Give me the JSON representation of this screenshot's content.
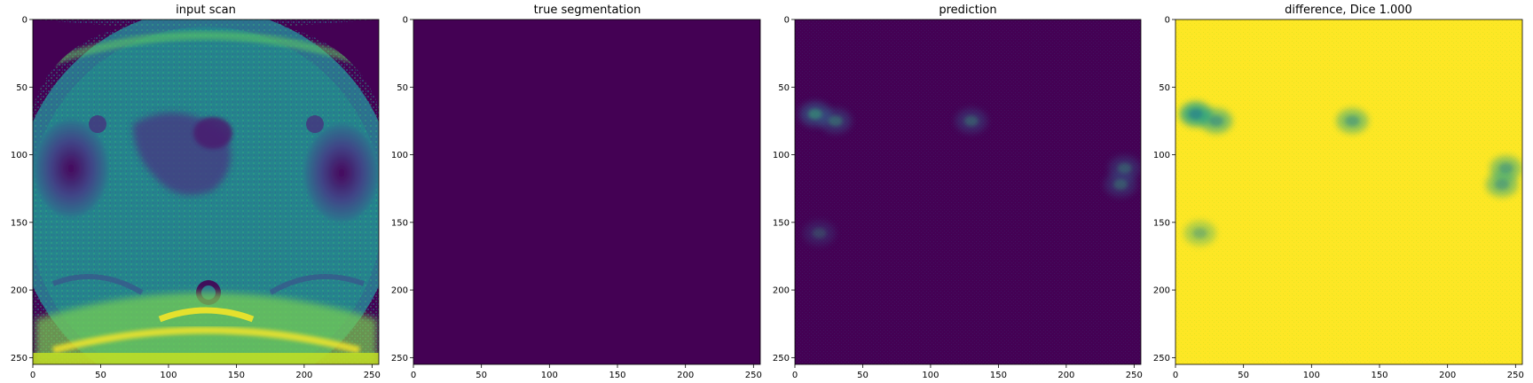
{
  "figure": {
    "panels": [
      {
        "key": "input",
        "title": "input scan"
      },
      {
        "key": "truth",
        "title": "true segmentation"
      },
      {
        "key": "pred",
        "title": "prediction"
      },
      {
        "key": "diff",
        "title": "difference, Dice 1.000"
      }
    ]
  },
  "chart_data": [
    {
      "type": "heatmap",
      "title": "input scan",
      "content": "grayscale MRI axial pelvic slice rendered with viridis colormap",
      "colormap": "viridis",
      "xlim": [
        0,
        255
      ],
      "ylim": [
        255,
        0
      ],
      "xticks": [
        0,
        50,
        100,
        150,
        200,
        250
      ],
      "yticks": [
        0,
        50,
        100,
        150,
        200,
        250
      ]
    },
    {
      "type": "heatmap",
      "title": "true segmentation",
      "content": "uniform zero mask",
      "colormap": "viridis",
      "value": 0,
      "xlim": [
        0,
        255
      ],
      "ylim": [
        255,
        0
      ],
      "xticks": [
        0,
        50,
        100,
        150,
        200,
        250
      ],
      "yticks": [
        0,
        50,
        100,
        150,
        200,
        250
      ]
    },
    {
      "type": "heatmap",
      "title": "prediction",
      "content": "mostly near-zero prediction with faint activations",
      "colormap": "viridis",
      "hotspots": [
        {
          "x": 15,
          "y": 70,
          "v": 0.55
        },
        {
          "x": 30,
          "y": 75,
          "v": 0.4
        },
        {
          "x": 130,
          "y": 75,
          "v": 0.35
        },
        {
          "x": 243,
          "y": 110,
          "v": 0.35
        },
        {
          "x": 240,
          "y": 122,
          "v": 0.35
        },
        {
          "x": 18,
          "y": 158,
          "v": 0.25
        }
      ],
      "xlim": [
        0,
        255
      ],
      "ylim": [
        255,
        0
      ],
      "xticks": [
        0,
        50,
        100,
        150,
        200,
        250
      ],
      "yticks": [
        0,
        50,
        100,
        150,
        200,
        250
      ]
    },
    {
      "type": "heatmap",
      "title": "difference, Dice 1.000",
      "content": "near-uniform high values with dips where prediction is active",
      "colormap": "viridis",
      "xlim": [
        0,
        255
      ],
      "ylim": [
        255,
        0
      ],
      "xticks": [
        0,
        50,
        100,
        150,
        200,
        250
      ],
      "yticks": [
        0,
        50,
        100,
        150,
        200,
        250
      ]
    }
  ],
  "colors": {
    "viridis_low": "#440154",
    "viridis_mid": "#21918c",
    "viridis_high": "#fde725"
  }
}
